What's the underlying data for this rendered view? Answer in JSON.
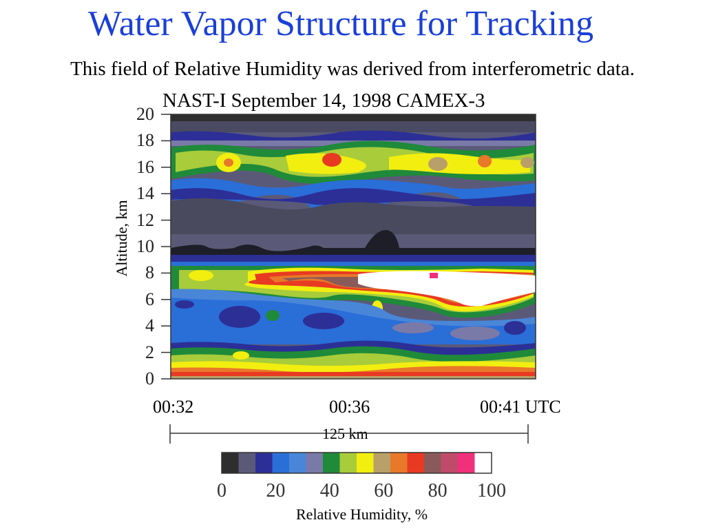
{
  "title": "Water Vapor Structure for Tracking",
  "subtitle": "This field of Relative Humidity was derived from interferometric data.",
  "chart_data": {
    "type": "heatmap",
    "title": "NAST-I September 14, 1998 CAMEX-3",
    "ylabel": "Altitude, km",
    "ylim": [
      0,
      20
    ],
    "y_ticks": [
      "0",
      "2",
      "4",
      "6",
      "8",
      "10",
      "12",
      "14",
      "16",
      "18",
      "20"
    ],
    "x_ticks": [
      "00:32",
      "00:36",
      "00:41 UTC"
    ],
    "distance_scale": "125 km",
    "colorbar": {
      "label": "Relative Humidity, %",
      "range": [
        0,
        100
      ],
      "ticks": [
        "0",
        "20",
        "40",
        "60",
        "80",
        "100"
      ],
      "colors": [
        "#2e2e2e",
        "#5a5a78",
        "#2c2f96",
        "#2a6ed8",
        "#4a86d8",
        "#7a7aa8",
        "#1f8a3a",
        "#a8cc3a",
        "#f2ee10",
        "#b8a068",
        "#e8782a",
        "#e83a22",
        "#8a5a5a",
        "#c04a6a",
        "#f0307a",
        "#ffffff"
      ]
    }
  }
}
